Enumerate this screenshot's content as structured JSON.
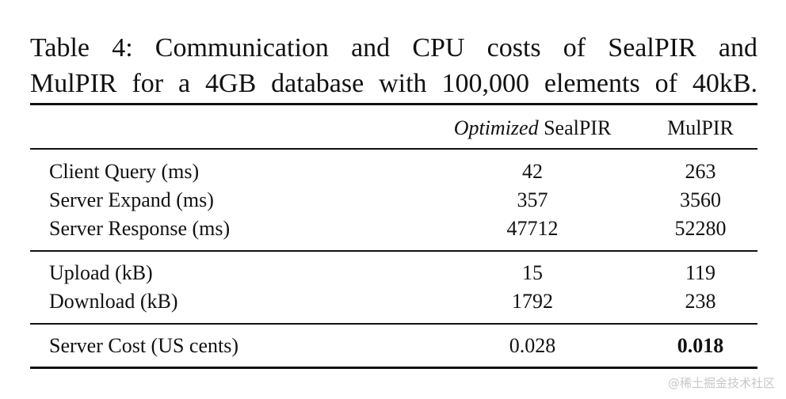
{
  "caption": {
    "line1": "Table 4: Communication and CPU costs of SealPIR and",
    "line2": "MulPIR for a 4GB database with 100,000 elements of 40kB."
  },
  "table": {
    "header": {
      "col1_em": "Optimized",
      "col1_rest": " SealPIR",
      "col2": "MulPIR"
    },
    "groups": [
      {
        "rows": [
          {
            "label": "Client Query (ms)",
            "sealpir": "42",
            "mulpir": "263"
          },
          {
            "label": "Server Expand (ms)",
            "sealpir": "357",
            "mulpir": "3560"
          },
          {
            "label": "Server Response (ms)",
            "sealpir": "47712",
            "mulpir": "52280"
          }
        ]
      },
      {
        "rows": [
          {
            "label": "Upload (kB)",
            "sealpir": "15",
            "mulpir": "119"
          },
          {
            "label": "Download (kB)",
            "sealpir": "1792",
            "mulpir": "238"
          }
        ]
      },
      {
        "rows": [
          {
            "label": "Server Cost (US cents)",
            "sealpir": "0.028",
            "mulpir": "0.018"
          }
        ]
      }
    ]
  },
  "watermark": "@稀土掘金技术社区"
}
